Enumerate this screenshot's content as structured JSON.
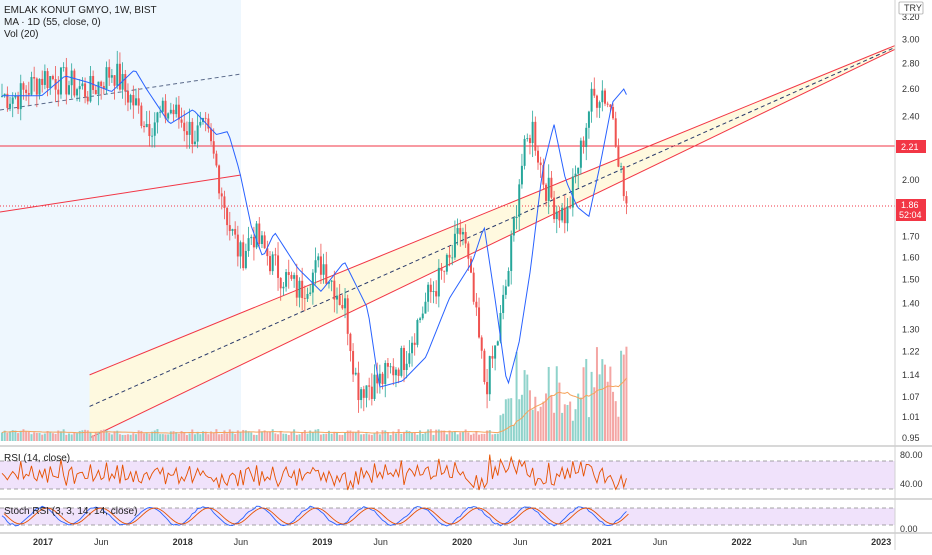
{
  "header": {
    "symbol": "EMLAK KONUT GMYO, 1W, BIST",
    "ma_label": "MA · 1D (55, close, 0)",
    "vol_label": "Vol (20)",
    "currency": "TRY"
  },
  "rsi": {
    "label": "RSI (14, close)",
    "ticks": [
      "80.00",
      "40.00"
    ]
  },
  "stoch": {
    "label": "Stoch RSI (3, 3, 14, 14, close)",
    "ticks": [
      "0.00"
    ]
  },
  "price_badges": {
    "level": "2.21",
    "last": "1.86",
    "countdown": "52:04"
  },
  "colors": {
    "up": "#26a69a",
    "down": "#ef5350",
    "ma": "#2962ff",
    "channel": "#f23645",
    "channel_fill": "#fff8dc",
    "highlight": "#e3f2fd"
  },
  "chart_data": {
    "type": "candlestick",
    "y_scale": "log",
    "y_ticks": [
      "3.20",
      "3.00",
      "2.80",
      "2.60",
      "2.40",
      "2.00",
      "1.70",
      "1.60",
      "1.50",
      "1.40",
      "1.30",
      "1.22",
      "1.14",
      "1.07",
      "1.01",
      "0.95"
    ],
    "x_ticks": [
      "2017",
      "Jun",
      "2018",
      "Jun",
      "2019",
      "Jun",
      "2020",
      "Jun",
      "2021",
      "Jun",
      "2022",
      "Jun",
      "2023"
    ],
    "horizontal_level": 2.21,
    "last_price": 1.86,
    "close_path": [
      [
        "2016-11",
        2.55
      ],
      [
        "2017-01",
        2.7
      ],
      [
        "2017-03",
        2.65
      ],
      [
        "2017-05",
        2.58
      ],
      [
        "2017-07",
        2.75
      ],
      [
        "2017-08",
        2.6
      ],
      [
        "2017-10",
        2.35
      ],
      [
        "2017-12",
        2.45
      ],
      [
        "2018-02",
        2.28
      ],
      [
        "2018-03",
        2.3
      ],
      [
        "2018-04",
        2.05
      ],
      [
        "2018-05",
        1.75
      ],
      [
        "2018-06",
        1.6
      ],
      [
        "2018-07",
        1.72
      ],
      [
        "2018-09",
        1.55
      ],
      [
        "2018-11",
        1.45
      ],
      [
        "2019-01",
        1.58
      ],
      [
        "2019-03",
        1.38
      ],
      [
        "2019-04",
        1.1
      ],
      [
        "2019-06",
        1.12
      ],
      [
        "2019-08",
        1.2
      ],
      [
        "2019-10",
        1.42
      ],
      [
        "2019-12",
        1.58
      ],
      [
        "2020-01",
        1.75
      ],
      [
        "2020-02",
        1.4
      ],
      [
        "2020-03",
        1.1
      ],
      [
        "2020-04",
        1.25
      ],
      [
        "2020-05",
        1.55
      ],
      [
        "2020-06",
        2.05
      ],
      [
        "2020-07",
        2.35
      ],
      [
        "2020-08",
        2.0
      ],
      [
        "2020-09",
        1.85
      ],
      [
        "2020-10",
        1.8
      ],
      [
        "2020-11",
        2.1
      ],
      [
        "2020-12",
        2.5
      ],
      [
        "2021-01",
        2.6
      ],
      [
        "2021-02",
        2.42
      ],
      [
        "2021-03",
        1.86
      ]
    ],
    "channel": {
      "upper_start": [
        "2019-01",
        1.5
      ],
      "upper_end": [
        "2022-12",
        2.86
      ],
      "lower_start": [
        "2017-05",
        0.95
      ],
      "lower_end": [
        "2023-01",
        2.86
      ]
    },
    "volume_ma_period": 20
  }
}
